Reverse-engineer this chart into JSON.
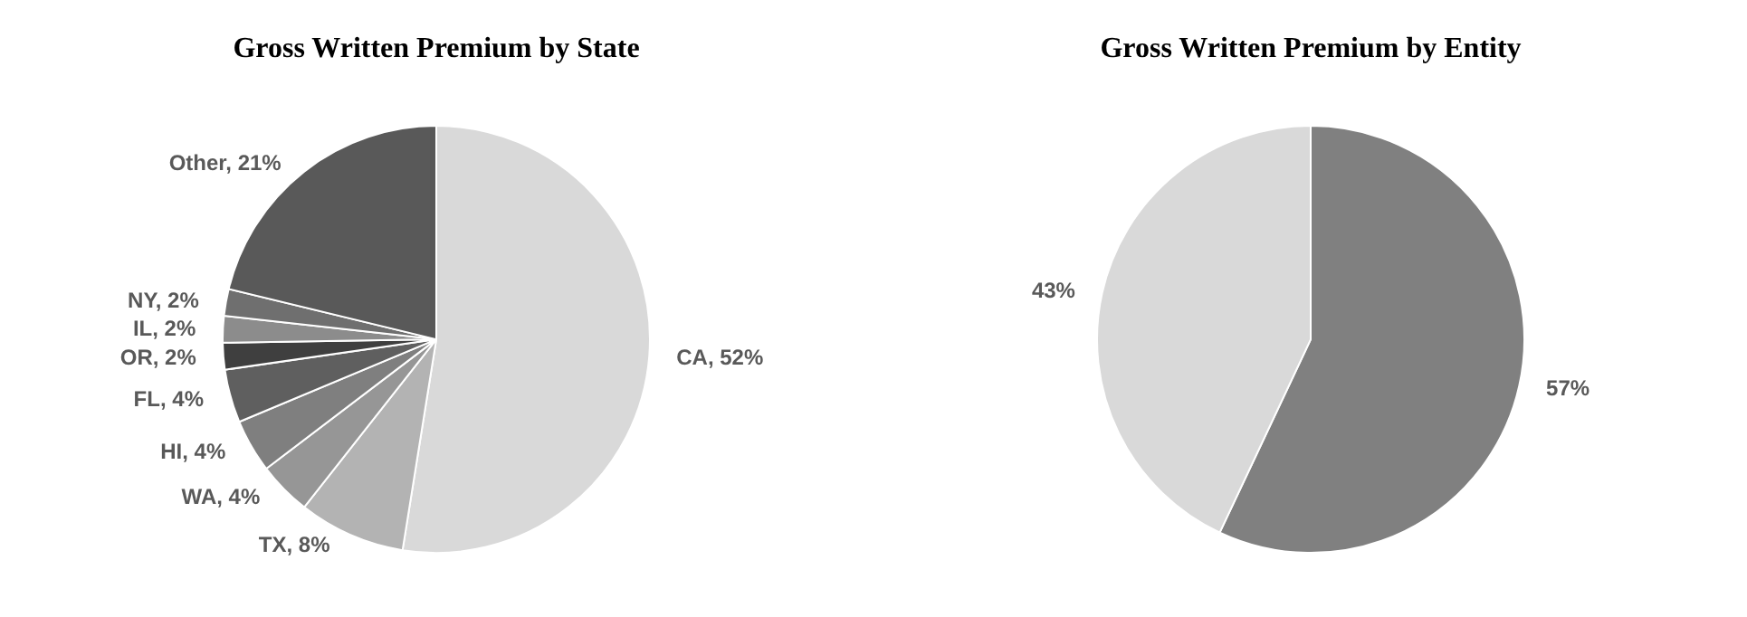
{
  "chart_data": [
    {
      "type": "pie",
      "title": "Gross Written Premium by State",
      "categories": [
        "CA",
        "TX",
        "WA",
        "HI",
        "FL",
        "OR",
        "IL",
        "NY",
        "Other"
      ],
      "values": [
        52,
        8,
        4,
        4,
        4,
        2,
        2,
        2,
        21
      ],
      "value_labels": [
        "52%",
        "8%",
        "4%",
        "4%",
        "4%",
        "2%",
        "2%",
        "2%",
        "21%"
      ],
      "colors": [
        "#d9d9d9",
        "#b3b3b3",
        "#969696",
        "#7f7f7f",
        "#5f5f5f",
        "#3f3f3f",
        "#8c8c8c",
        "#6f6f6f",
        "#595959"
      ]
    },
    {
      "type": "pie",
      "title": "Gross Written Premium by Entity",
      "categories": [
        null,
        null
      ],
      "values": [
        57,
        43
      ],
      "value_labels": [
        "57%",
        "43%"
      ],
      "colors": [
        "#808080",
        "#d9d9d9"
      ]
    }
  ]
}
